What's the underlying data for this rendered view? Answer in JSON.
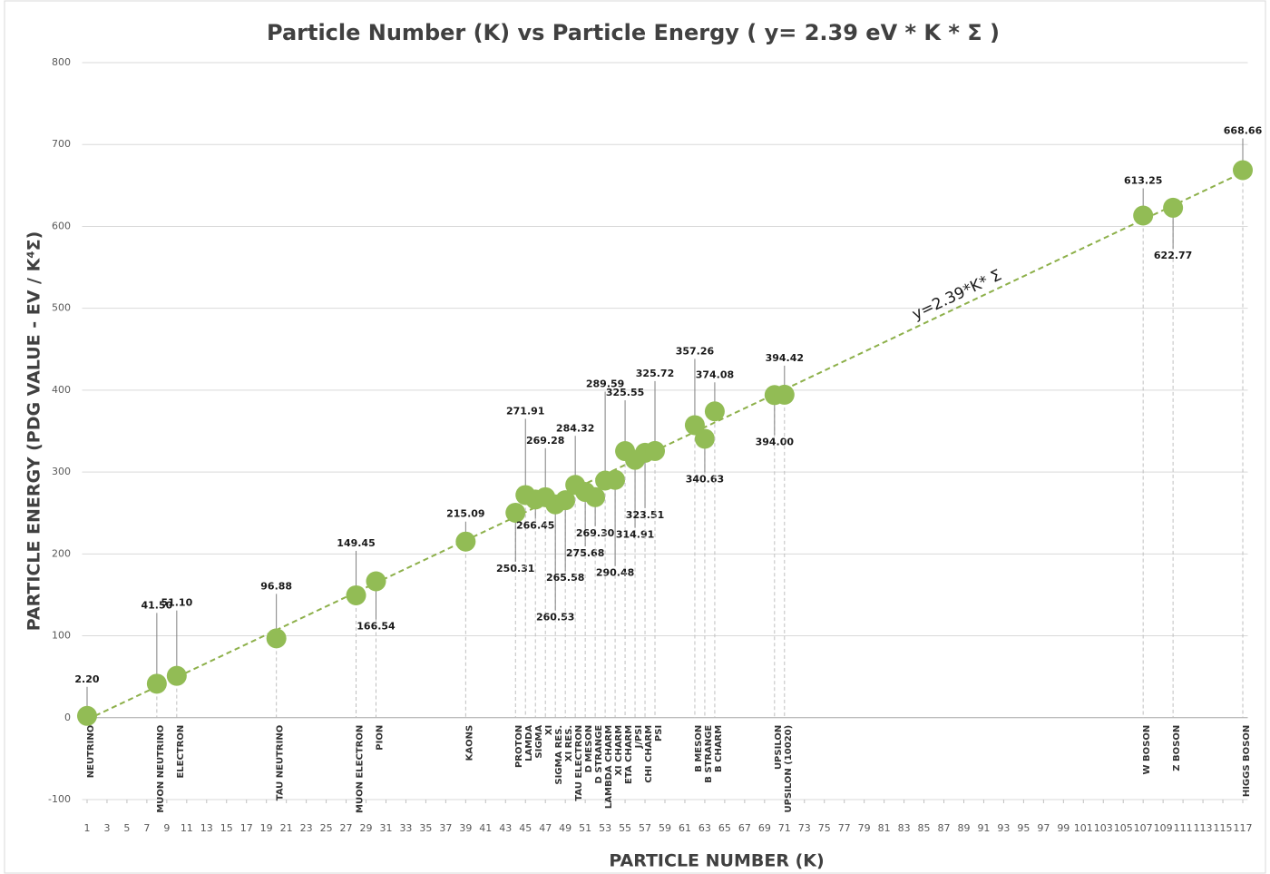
{
  "chart_data": {
    "type": "scatter",
    "title": "Particle Number (K) vs Particle Energy ( y= 2.39 eV * K * Σ )",
    "x_label": "PARTICLE NUMBER (K)",
    "y_label": "PARTICLE ENERGY (PDG VALUE - EV / K⁴Σ)",
    "annotation": "y=2.39*K* Σ",
    "color": "#92bc55",
    "trend_color": "#8db04a",
    "grid": true,
    "x": [
      1,
      8,
      10,
      20,
      28,
      30,
      39,
      44,
      45,
      46,
      47,
      48,
      49,
      50,
      51,
      52,
      53,
      54,
      55,
      56,
      57,
      58,
      62,
      63,
      64,
      70,
      71,
      107,
      110,
      117
    ],
    "values": [
      2.2,
      41.5,
      51.1,
      96.88,
      149.45,
      166.54,
      215.09,
      250.31,
      271.91,
      266.45,
      269.28,
      260.53,
      265.58,
      284.32,
      275.68,
      269.3,
      289.59,
      290.48,
      325.55,
      314.91,
      323.51,
      325.72,
      357.26,
      340.63,
      374.08,
      394.0,
      394.42,
      613.25,
      622.77,
      668.66
    ],
    "value_labels": [
      "2.20",
      "41.50",
      "51.10",
      "96.88",
      "149.45",
      "166.54",
      "215.09",
      "250.31",
      "271.91",
      "266.45",
      "269.28",
      "260.53",
      "265.58",
      "284.32",
      "275.68",
      "269.30",
      "289.59",
      "290.48",
      "325.55",
      "314.91",
      "323.51",
      "325.72",
      "357.26",
      "340.63",
      "374.08",
      "394.00",
      "394.42",
      "613.25",
      "622.77",
      "668.66"
    ],
    "point_labels": [
      "NEUTRINO",
      "MUON NEUTRINO",
      "ELECTRON",
      "TAU NEUTRINO",
      "MUON ELECTRON",
      "PION",
      "KAONS",
      "PROTON",
      "LAMDA",
      "SIGMA",
      "XI",
      "SIGMA RES.",
      "XI RES.",
      "TAU ELECTRON",
      "D MESON",
      "D STRANGE",
      "LAMBDA CHARM",
      "XI CHARM",
      "ETA CHARM",
      "J/PSI",
      "CHI CHARM",
      "PSI",
      "B MESON",
      "B STRANGE",
      "B CHARM",
      "UPSILON",
      "UPSILON (10020)",
      "W BOSON",
      "Z BOSON",
      "HIGGS BOSON"
    ],
    "xlim": [
      0.5,
      117.5
    ],
    "xticks": [
      1,
      3,
      5,
      7,
      9,
      11,
      13,
      15,
      17,
      19,
      21,
      23,
      25,
      27,
      29,
      31,
      33,
      35,
      37,
      39,
      41,
      43,
      45,
      47,
      49,
      51,
      53,
      55,
      57,
      59,
      61,
      63,
      65,
      67,
      69,
      71,
      73,
      75,
      77,
      79,
      81,
      83,
      85,
      87,
      89,
      91,
      93,
      95,
      97,
      99,
      101,
      103,
      105,
      107,
      109,
      111,
      113,
      115,
      117
    ],
    "ylim": [
      -100,
      800
    ],
    "yticks": [
      -100,
      0,
      100,
      200,
      300,
      400,
      500,
      600,
      700,
      800
    ]
  }
}
